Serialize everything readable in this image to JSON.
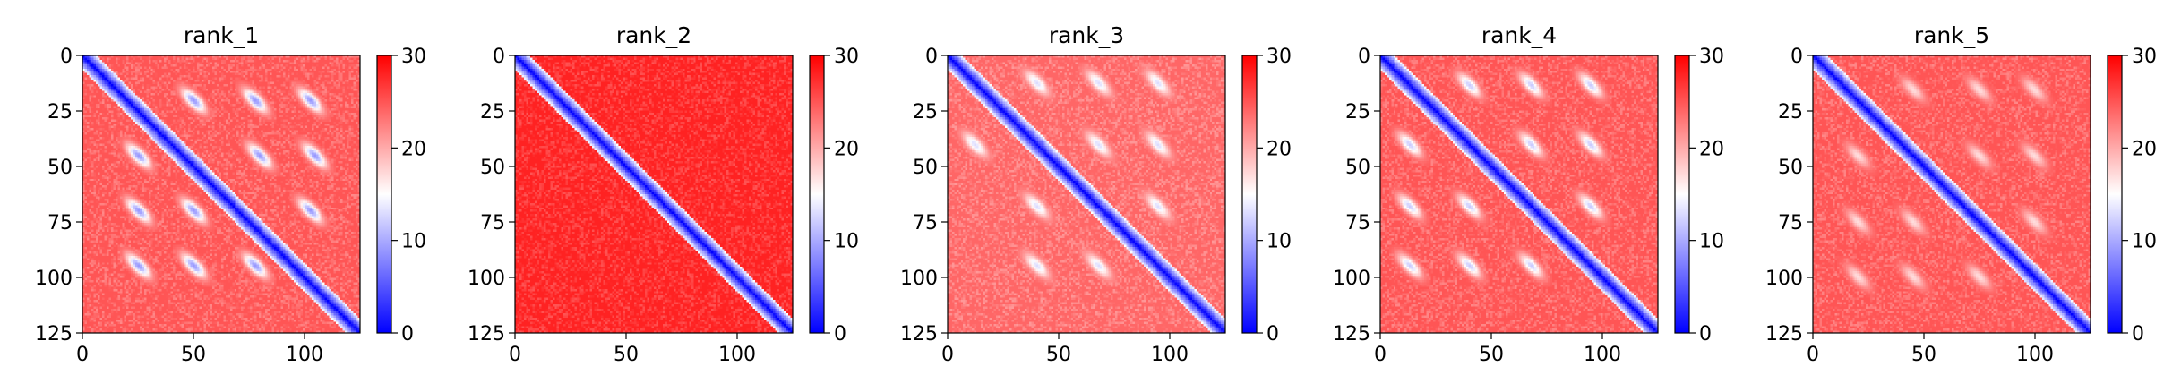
{
  "chart_data": [
    {
      "type": "heatmap",
      "title": "rank_1",
      "matrix_size": 126,
      "xticks": [
        0,
        50,
        100
      ],
      "yticks": [
        0,
        25,
        50,
        75,
        100,
        125
      ],
      "xlim": [
        0,
        125
      ],
      "ylim": [
        125,
        0
      ],
      "colorbar": {
        "colormap": "bwr",
        "range": [
          0,
          30
        ],
        "ticks": [
          0,
          10,
          20,
          30
        ]
      },
      "pattern": {
        "diagonal_band_width": 6,
        "background_level": 25,
        "features": [
          {
            "x": 50,
            "y": 20
          },
          {
            "x": 78,
            "y": 20
          },
          {
            "x": 103,
            "y": 20
          },
          {
            "x": 25,
            "y": 45
          },
          {
            "x": 80,
            "y": 45
          },
          {
            "x": 105,
            "y": 45
          },
          {
            "x": 25,
            "y": 70
          },
          {
            "x": 50,
            "y": 70
          },
          {
            "x": 103,
            "y": 70
          },
          {
            "x": 25,
            "y": 95
          },
          {
            "x": 50,
            "y": 95
          },
          {
            "x": 78,
            "y": 95
          }
        ],
        "feature_min_value": 9
      }
    },
    {
      "type": "heatmap",
      "title": "rank_2",
      "matrix_size": 126,
      "xticks": [
        0,
        50,
        100
      ],
      "yticks": [
        0,
        25,
        50,
        75,
        100,
        125
      ],
      "xlim": [
        0,
        125
      ],
      "ylim": [
        125,
        0
      ],
      "colorbar": {
        "colormap": "bwr",
        "range": [
          0,
          30
        ],
        "ticks": [
          0,
          10,
          20,
          30
        ]
      },
      "pattern": {
        "diagonal_band_width": 6,
        "background_level": 28,
        "features": [],
        "feature_min_value": 28
      }
    },
    {
      "type": "heatmap",
      "title": "rank_3",
      "matrix_size": 126,
      "xticks": [
        0,
        50,
        100
      ],
      "yticks": [
        0,
        25,
        50,
        75,
        100,
        125
      ],
      "xlim": [
        0,
        125
      ],
      "ylim": [
        125,
        0
      ],
      "colorbar": {
        "colormap": "bwr",
        "range": [
          0,
          30
        ],
        "ticks": [
          0,
          10,
          20,
          30
        ]
      },
      "pattern": {
        "diagonal_band_width": 6,
        "background_level": 24,
        "features": [
          {
            "x": 40,
            "y": 12
          },
          {
            "x": 68,
            "y": 12
          },
          {
            "x": 95,
            "y": 12
          },
          {
            "x": 12,
            "y": 40
          },
          {
            "x": 68,
            "y": 40
          },
          {
            "x": 95,
            "y": 40
          },
          {
            "x": 40,
            "y": 68
          },
          {
            "x": 95,
            "y": 68
          },
          {
            "x": 40,
            "y": 95
          },
          {
            "x": 68,
            "y": 95
          }
        ],
        "feature_min_value": 13
      }
    },
    {
      "type": "heatmap",
      "title": "rank_4",
      "matrix_size": 126,
      "xticks": [
        0,
        50,
        100
      ],
      "yticks": [
        0,
        25,
        50,
        75,
        100,
        125
      ],
      "xlim": [
        0,
        125
      ],
      "ylim": [
        125,
        0
      ],
      "colorbar": {
        "colormap": "bwr",
        "range": [
          0,
          30
        ],
        "ticks": [
          0,
          10,
          20,
          30
        ]
      },
      "pattern": {
        "diagonal_band_width": 6,
        "background_level": 25,
        "features": [
          {
            "x": 40,
            "y": 13
          },
          {
            "x": 68,
            "y": 13
          },
          {
            "x": 95,
            "y": 13
          },
          {
            "x": 13,
            "y": 40
          },
          {
            "x": 68,
            "y": 40
          },
          {
            "x": 95,
            "y": 40
          },
          {
            "x": 13,
            "y": 68
          },
          {
            "x": 40,
            "y": 68
          },
          {
            "x": 95,
            "y": 68
          },
          {
            "x": 13,
            "y": 95
          },
          {
            "x": 40,
            "y": 95
          },
          {
            "x": 68,
            "y": 95
          }
        ],
        "feature_min_value": 12
      }
    },
    {
      "type": "heatmap",
      "title": "rank_5",
      "matrix_size": 126,
      "xticks": [
        0,
        50,
        100
      ],
      "yticks": [
        0,
        25,
        50,
        75,
        100,
        125
      ],
      "xlim": [
        0,
        125
      ],
      "ylim": [
        125,
        0
      ],
      "colorbar": {
        "colormap": "bwr",
        "range": [
          0,
          30
        ],
        "ticks": [
          0,
          10,
          20,
          30
        ]
      },
      "pattern": {
        "diagonal_band_width": 6,
        "background_level": 25,
        "features": [
          {
            "x": 45,
            "y": 15
          },
          {
            "x": 75,
            "y": 15
          },
          {
            "x": 100,
            "y": 15
          },
          {
            "x": 20,
            "y": 45
          },
          {
            "x": 75,
            "y": 45
          },
          {
            "x": 100,
            "y": 45
          },
          {
            "x": 20,
            "y": 75
          },
          {
            "x": 45,
            "y": 75
          },
          {
            "x": 100,
            "y": 75
          },
          {
            "x": 20,
            "y": 100
          },
          {
            "x": 45,
            "y": 100
          },
          {
            "x": 75,
            "y": 100
          }
        ],
        "feature_min_value": 17
      }
    }
  ]
}
